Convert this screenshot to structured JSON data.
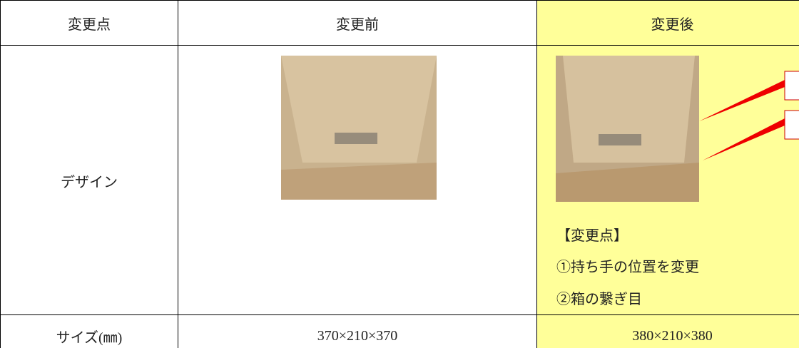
{
  "table": {
    "header": [
      "変更点",
      "変更前",
      "変更後"
    ],
    "rows": [
      {
        "label": "デザイン",
        "after_notes": [
          "【変更点】",
          "①持ち手の位置を変更",
          "②箱の繋ぎ目"
        ]
      },
      {
        "label": "サイズ(㎜)",
        "before": "370×210×370",
        "after": "380×210×380"
      }
    ]
  }
}
